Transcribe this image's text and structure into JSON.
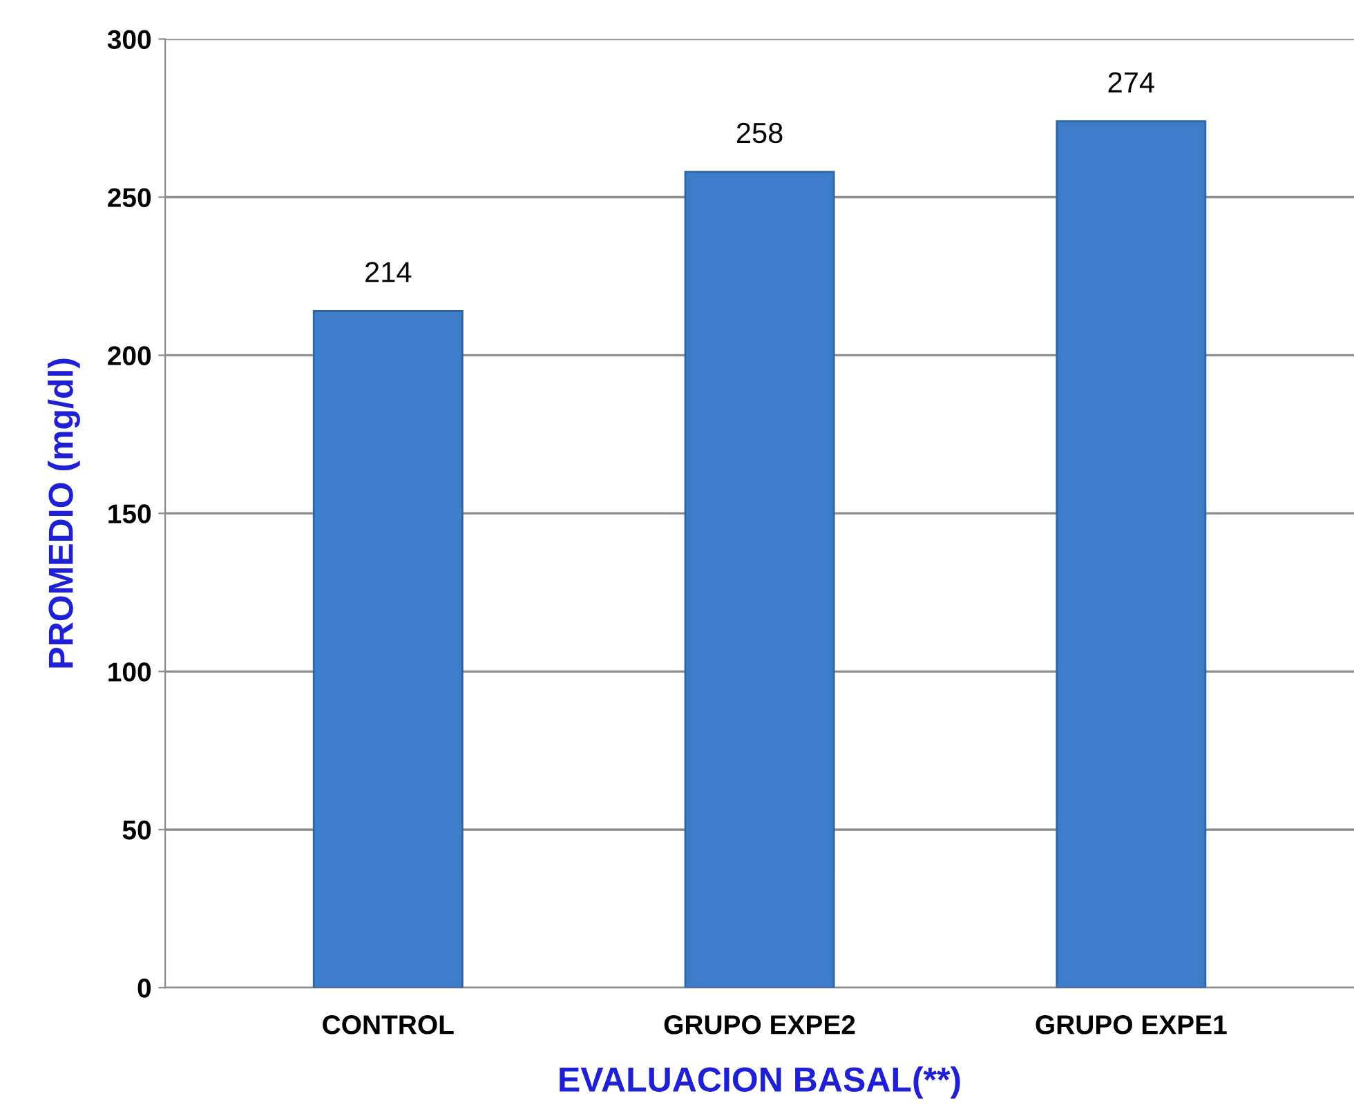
{
  "chart_data": {
    "type": "bar",
    "xlabel": "EVALUACION BASAL(**)",
    "ylabel": "PROMEDIO (mg/dl)",
    "categories": [
      "CONTROL",
      "GRUPO EXPE2",
      "GRUPO EXPE1"
    ],
    "values": [
      214,
      258,
      274
    ],
    "color": "#3d7cc9",
    "ylim": [
      0,
      300
    ],
    "yticks": [
      0,
      50,
      100,
      150,
      200,
      250,
      300
    ],
    "grid": "y",
    "data_labels": true
  }
}
